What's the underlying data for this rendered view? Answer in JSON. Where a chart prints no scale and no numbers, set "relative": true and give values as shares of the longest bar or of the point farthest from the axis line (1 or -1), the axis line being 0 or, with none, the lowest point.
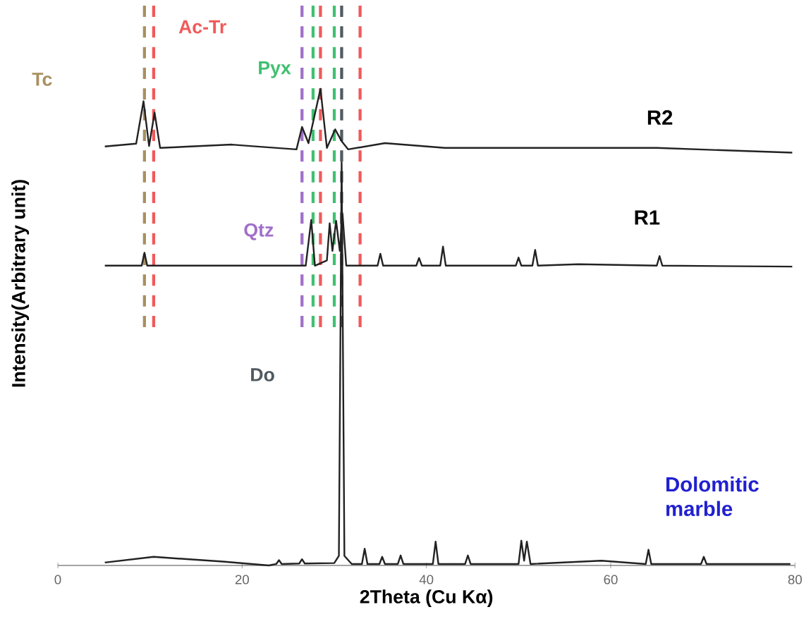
{
  "chart_data": {
    "type": "line",
    "xlabel": "2Theta (Cu Kα)",
    "ylabel": "Intensity(Arbitrary unit)",
    "relative": true,
    "xlim": [
      0,
      80
    ],
    "xticks": [
      0,
      20,
      40,
      60,
      80
    ],
    "tick_labels": "x",
    "marker": "none",
    "line_style": "solid",
    "series": [
      {
        "name": "R2",
        "color": "#222222",
        "x": [
          5.1,
          8.5,
          9.3,
          9.9,
          10.5,
          11.1,
          18.9,
          20.9,
          25.9,
          26.5,
          27.2,
          28.5,
          29.2,
          30.1,
          30.8,
          31.5,
          35.5,
          42.0,
          65.0,
          79.7
        ],
        "values": [
          0.879,
          0.885,
          0.974,
          0.88,
          0.95,
          0.876,
          0.883,
          0.88,
          0.873,
          0.92,
          0.886,
          1,
          0.876,
          0.915,
          0.89,
          0.873,
          0.886,
          0.876,
          0.876,
          0.866
        ]
      },
      {
        "name": "R1",
        "color": "#222222",
        "x": [
          5.1,
          9.1,
          9.4,
          9.7,
          26.9,
          27.5,
          27.9,
          29.2,
          29.5,
          29.8,
          30.2,
          30.6,
          30.9,
          31.3,
          34.7,
          35.0,
          35.3,
          38.9,
          39.2,
          39.5,
          41.5,
          41.8,
          42.1,
          49.7,
          50.0,
          50.3,
          51.5,
          51.8,
          52.1,
          56.5,
          65.0,
          65.3,
          65.6,
          79.7
        ],
        "values": [
          0.629,
          0.629,
          0.656,
          0.629,
          0.629,
          0.725,
          0.629,
          0.64,
          0.718,
          0.66,
          0.723,
          0.66,
          0.737,
          0.629,
          0.629,
          0.654,
          0.629,
          0.629,
          0.645,
          0.629,
          0.629,
          0.669,
          0.629,
          0.629,
          0.646,
          0.629,
          0.629,
          0.662,
          0.629,
          0.632,
          0.629,
          0.649,
          0.629,
          0.627
        ]
      },
      {
        "name": "Dolomitic marble",
        "color": "#222222",
        "x": [
          5.1,
          10.4,
          17.9,
          22.9,
          23.7,
          24.0,
          24.3,
          26.2,
          26.5,
          26.8,
          30.0,
          30.5,
          30.8,
          31.1,
          31.9,
          33.0,
          33.3,
          33.6,
          34.9,
          35.2,
          35.5,
          36.9,
          37.2,
          37.5,
          40.7,
          41.0,
          41.3,
          44.2,
          44.5,
          44.8,
          50.0,
          50.3,
          50.6,
          50.9,
          51.3,
          59.0,
          63.8,
          64.1,
          64.4,
          69.8,
          70.1,
          70.4,
          76.7,
          79.5
        ],
        "values": [
          0.006,
          0.018,
          0.008,
          0.0,
          0.003,
          0.011,
          0.003,
          0.004,
          0.013,
          0.004,
          0.005,
          0.02,
          0.846,
          0.02,
          0.003,
          0.003,
          0.035,
          0.003,
          0.003,
          0.018,
          0.003,
          0.003,
          0.021,
          0.003,
          0.003,
          0.05,
          0.003,
          0.003,
          0.021,
          0.003,
          0.003,
          0.052,
          0.01,
          0.05,
          0.003,
          0.01,
          0.003,
          0.033,
          0.003,
          0.003,
          0.018,
          0.003,
          0.003,
          0.003
        ]
      }
    ],
    "ref_lines": [
      {
        "axis": "x",
        "value": 9.4,
        "color": "#a89060",
        "line_style": "dashed",
        "label": "Tc"
      },
      {
        "axis": "x",
        "value": 10.4,
        "color": "#f05a5a",
        "line_style": "dashed",
        "label": "Ac-Tr"
      },
      {
        "axis": "x",
        "value": 26.5,
        "color": "#a070c8",
        "line_style": "dashed",
        "label": "Qtz"
      },
      {
        "axis": "x",
        "value": 27.7,
        "color": "#40c070",
        "line_style": "dashed",
        "label": "Pyx"
      },
      {
        "axis": "x",
        "value": 28.5,
        "color": "#f05a5a",
        "line_style": "dashed"
      },
      {
        "axis": "x",
        "value": 30.0,
        "color": "#40c070",
        "line_style": "dashed"
      },
      {
        "axis": "x",
        "value": 30.8,
        "color": "#505a60",
        "line_style": "dashed",
        "label": "Do"
      },
      {
        "axis": "x",
        "value": 32.8,
        "color": "#f05a5a",
        "line_style": "dashed"
      }
    ]
  }
}
